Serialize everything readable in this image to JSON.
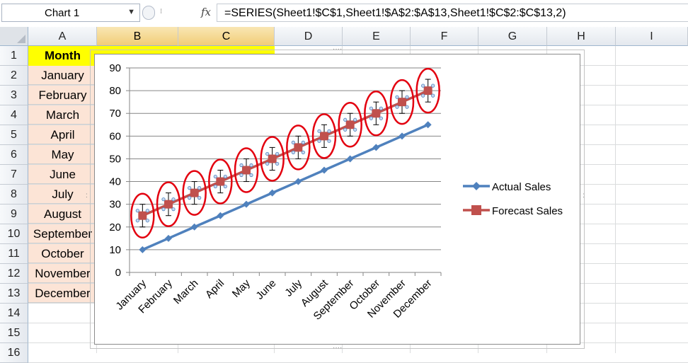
{
  "formula_bar": {
    "name_box": "Chart 1",
    "formula": "=SERIES(Sheet1!$C$1,Sheet1!$A$2:$A$13,Sheet1!$C$2:$C$13,2)"
  },
  "columns": [
    "A",
    "B",
    "C",
    "D",
    "E",
    "F",
    "G",
    "H",
    "I"
  ],
  "rows": [
    "1",
    "2",
    "3",
    "4",
    "5",
    "6",
    "7",
    "8",
    "9",
    "10",
    "11",
    "12",
    "13",
    "14",
    "15",
    "16"
  ],
  "cells": {
    "a1": "Month",
    "months": [
      "January",
      "February",
      "March",
      "April",
      "May",
      "June",
      "July",
      "August",
      "September",
      "October",
      "November",
      "December"
    ]
  },
  "colors": {
    "actual": "#4f81bd",
    "forecast": "#c0504d",
    "ellipse": "#e3000f",
    "header_fill": "#ffff00",
    "month_fill": "#fce4d6"
  },
  "chart_data": {
    "type": "line",
    "categories": [
      "January",
      "February",
      "March",
      "April",
      "May",
      "June",
      "July",
      "August",
      "September",
      "October",
      "November",
      "December"
    ],
    "ylim": [
      0,
      90
    ],
    "yticks": [
      "0",
      "10",
      "20",
      "30",
      "40",
      "50",
      "60",
      "70",
      "80",
      "90"
    ],
    "series": [
      {
        "name": "Actual Sales",
        "values": [
          10,
          15,
          20,
          25,
          30,
          35,
          40,
          45,
          50,
          55,
          60,
          65
        ]
      },
      {
        "name": "Forecast Sales",
        "values": [
          25,
          30,
          35,
          40,
          45,
          50,
          55,
          60,
          65,
          70,
          75,
          80
        ],
        "error_bars": 5
      }
    ],
    "legend": "right",
    "grid": true
  }
}
